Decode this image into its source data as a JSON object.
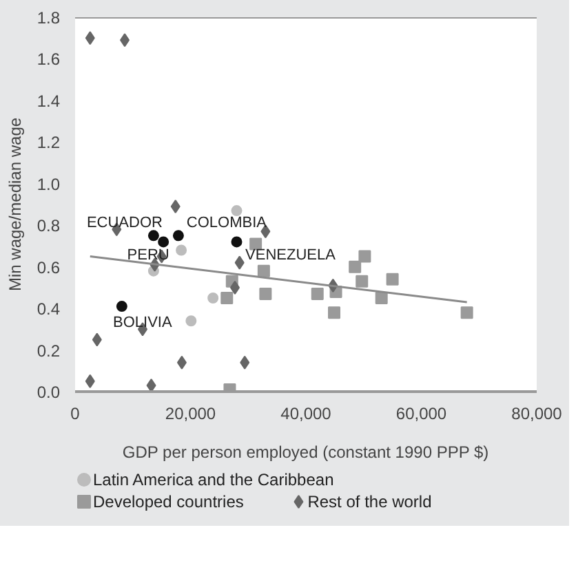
{
  "chart_data": {
    "type": "scatter",
    "xlabel": "GDP per person employed (constant 1990 PPP $)",
    "ylabel": "Min wage/median wage",
    "xlim": [
      0,
      80000
    ],
    "ylim": [
      0,
      1.8
    ],
    "xticks": [
      {
        "value": 0,
        "label": "0"
      },
      {
        "value": 20000,
        "label": "20,000"
      },
      {
        "value": 40000,
        "label": "40,000"
      },
      {
        "value": 60000,
        "label": "60,000"
      },
      {
        "value": 80000,
        "label": "80,000"
      }
    ],
    "yticks": [
      {
        "value": 0,
        "label": "0.0"
      },
      {
        "value": 0.2,
        "label": "0.2"
      },
      {
        "value": 0.4,
        "label": "0.4"
      },
      {
        "value": 0.6,
        "label": "0.6"
      },
      {
        "value": 0.8,
        "label": "0.8"
      },
      {
        "value": 1.0,
        "label": "1.0"
      },
      {
        "value": 1.2,
        "label": "1.2"
      },
      {
        "value": 1.4,
        "label": "1.4"
      },
      {
        "value": 1.6,
        "label": "1.6"
      },
      {
        "value": 1.8,
        "label": "1.8"
      }
    ],
    "grid": false,
    "legend": "bottom",
    "series": [
      {
        "name": "Latin America and the Caribbean",
        "color": "#bcbcbc",
        "marker": "circle",
        "x": [
          28000,
          18400,
          13600,
          23900,
          20100
        ],
        "values": [
          0.87,
          0.68,
          0.58,
          0.45,
          0.34
        ]
      },
      {
        "name": "Developed countries",
        "color": "#9a9a9a",
        "marker": "square",
        "x": [
          31300,
          32700,
          33000,
          27200,
          26300,
          26800,
          50200,
          48500,
          49700,
          55000,
          42000,
          45200,
          44900,
          53100,
          67900
        ],
        "values": [
          0.71,
          0.58,
          0.47,
          0.53,
          0.45,
          0.01,
          0.65,
          0.6,
          0.53,
          0.54,
          0.47,
          0.48,
          0.38,
          0.45,
          0.38
        ]
      },
      {
        "name": "Rest of the world",
        "color": "#666666",
        "marker": "diamond",
        "x": [
          2600,
          8600,
          17400,
          7200,
          15000,
          13800,
          28500,
          27700,
          11700,
          3800,
          18500,
          29400,
          2600,
          13200,
          33000,
          44700
        ],
        "values": [
          1.7,
          1.69,
          0.89,
          0.78,
          0.65,
          0.61,
          0.62,
          0.5,
          0.3,
          0.25,
          0.14,
          0.14,
          0.05,
          0.03,
          0.77,
          0.51
        ]
      },
      {
        "color": "#111111",
        "marker": "circle",
        "x": [
          13600,
          15300,
          17900,
          28000,
          8100
        ],
        "values": [
          0.75,
          0.72,
          0.75,
          0.72,
          0.41
        ]
      },
      {
        "type": "line",
        "color": "#8a8a8a",
        "marker": "none",
        "x": [
          2600,
          67900
        ],
        "values": [
          0.65,
          0.43
        ]
      }
    ],
    "annotations": [
      {
        "text": "ECUADOR",
        "x": 13600,
        "y": 0.75
      },
      {
        "text": "COLOMBIA",
        "x": 17900,
        "y": 0.75
      },
      {
        "text": "PERU",
        "x": 15300,
        "y": 0.72
      },
      {
        "text": "VENEZUELA",
        "x": 28000,
        "y": 0.72
      },
      {
        "text": "BOLIVIA",
        "x": 8100,
        "y": 0.41
      }
    ]
  }
}
